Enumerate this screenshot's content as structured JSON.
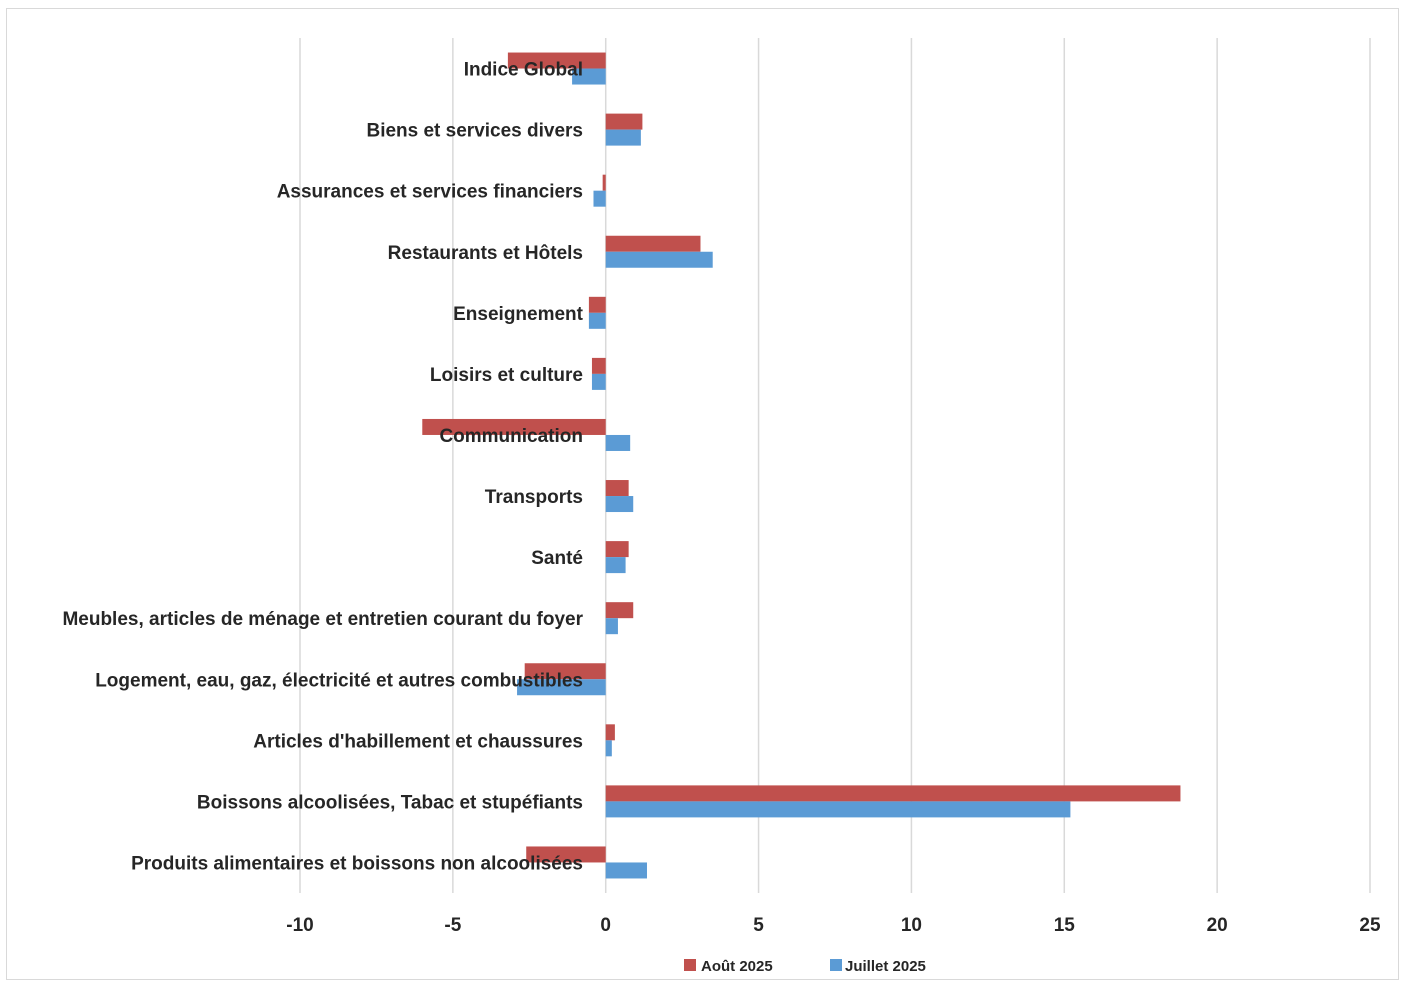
{
  "chart_data": {
    "type": "bar",
    "orientation": "horizontal",
    "categories": [
      "Indice Global",
      "Biens et services divers",
      "Assurances et services financiers",
      "Restaurants et Hôtels",
      "Enseignement",
      "Loisirs et culture",
      "Communication",
      "Transports",
      "Santé",
      "Meubles, articles de ménage et entretien courant du foyer",
      "Logement, eau, gaz, électricité et autres combustibles",
      "Articles d'habillement et chaussures",
      "Boissons alcoolisées,  Tabac et stupéfiants",
      "Produits alimentaires et boissons non alcoolisées"
    ],
    "series": [
      {
        "name": "Août 2025",
        "color": "#c0504d",
        "values": [
          -3.2,
          1.2,
          -0.1,
          3.1,
          -0.55,
          -0.45,
          -6.0,
          0.75,
          0.75,
          0.9,
          -2.65,
          0.3,
          18.8,
          -2.6
        ]
      },
      {
        "name": "Juillet 2025",
        "color": "#5b9bd5",
        "values": [
          -1.1,
          1.15,
          -0.4,
          3.5,
          -0.55,
          -0.45,
          0.8,
          0.9,
          0.65,
          0.4,
          -2.9,
          0.2,
          15.2,
          1.35
        ]
      }
    ],
    "x_ticks": [
      "-10",
      "-5",
      "0",
      "5",
      "10",
      "15",
      "20",
      "25"
    ],
    "xlim": [
      -10,
      25
    ],
    "grid": "vertical",
    "legend": "bottom",
    "title": "",
    "xlabel": "",
    "ylabel": ""
  }
}
